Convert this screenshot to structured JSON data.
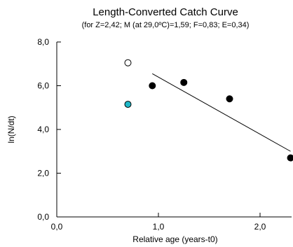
{
  "chart_data": {
    "type": "scatter",
    "title": "Length-Converted Catch Curve",
    "subtitle": "(for Z=2,42; M (at 29,0ºC)=1,59; F=0,83; E=0,34)",
    "xlabel": "Relative age (years-t0)",
    "ylabel": "ln(N/dt)",
    "xlim": [
      0,
      2.3
    ],
    "ylim": [
      0,
      8
    ],
    "xticks": [
      0,
      1,
      2
    ],
    "xtick_labels": [
      "0,0",
      "1,0",
      "2,0"
    ],
    "yticks": [
      0,
      2,
      4,
      6,
      8
    ],
    "ytick_labels": [
      "0,0",
      "2,0",
      "4,0",
      "6,0",
      "8,0"
    ],
    "grid": false,
    "series": [
      {
        "marker": "filled",
        "color": "#000000",
        "points": [
          {
            "x": 0.94,
            "y": 6.0
          },
          {
            "x": 1.25,
            "y": 6.15
          },
          {
            "x": 1.7,
            "y": 5.4
          },
          {
            "x": 2.3,
            "y": 2.7
          }
        ]
      },
      {
        "marker": "open",
        "color": "#000000",
        "points": [
          {
            "x": 0.7,
            "y": 7.05
          }
        ]
      },
      {
        "marker": "filled",
        "color": "#1fb8c8",
        "points": [
          {
            "x": 0.7,
            "y": 5.15
          }
        ]
      }
    ],
    "regression_line": {
      "x": [
        0.94,
        2.3
      ],
      "y": [
        6.55,
        3.0
      ],
      "color": "#000000"
    }
  }
}
